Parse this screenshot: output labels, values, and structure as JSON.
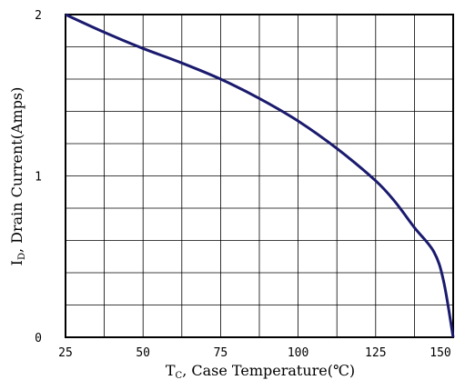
{
  "chart_data": {
    "type": "line",
    "title": "",
    "xlabel": {
      "main": "T",
      "sub": "C",
      "rest": ", Case Temperature(℃)"
    },
    "ylabel": {
      "main": "I",
      "sub": "D",
      "rest": ", Drain Current(Amps)"
    },
    "xlim": [
      25,
      150
    ],
    "ylim": [
      0,
      2
    ],
    "xticks": [
      25,
      50,
      75,
      100,
      125,
      150
    ],
    "xtick_labels": [
      "25",
      "50",
      "75",
      "100",
      "125",
      "150"
    ],
    "yticks": [
      0,
      1,
      2
    ],
    "ytick_labels": [
      "0",
      "1",
      "2"
    ],
    "grid": true,
    "grid_x_divisions": 10,
    "grid_y_divisions": 10,
    "line_color": "#1a1a6e",
    "series": [
      {
        "x": [
          25,
          37.5,
          50,
          62.5,
          75,
          87.5,
          100,
          112.5,
          125,
          131.25,
          137.5,
          143.75,
          146.9,
          150
        ],
        "y": [
          2.0,
          1.89,
          1.79,
          1.7,
          1.6,
          1.48,
          1.34,
          1.17,
          0.97,
          0.84,
          0.68,
          0.53,
          0.35,
          0.0
        ]
      }
    ]
  }
}
